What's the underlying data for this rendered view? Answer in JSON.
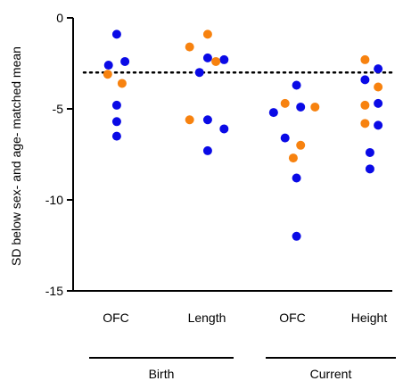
{
  "chart_data": {
    "type": "scatter",
    "ylabel": "SD below sex- and age- matched mean",
    "ylim": [
      -15,
      0
    ],
    "yticks": [
      0,
      -5,
      -10,
      -15
    ],
    "ytick_labels": [
      "0",
      "-5",
      "-10",
      "-15"
    ],
    "reference_line": {
      "y": -3,
      "style": "dotted"
    },
    "categories": [
      "OFC",
      "Length",
      "OFC",
      "Height"
    ],
    "groups": [
      {
        "label": "Birth",
        "categories": [
          0,
          1
        ]
      },
      {
        "label": "Current",
        "categories": [
          2,
          3
        ]
      }
    ],
    "series": [
      {
        "color": "#0a0ae6",
        "points": [
          {
            "category": 0,
            "offset": -0.18,
            "y": -2.6
          },
          {
            "category": 0,
            "offset": 0.02,
            "y": -0.9
          },
          {
            "category": 0,
            "offset": 0.22,
            "y": -2.4
          },
          {
            "category": 0,
            "offset": 0.02,
            "y": -4.8
          },
          {
            "category": 0,
            "offset": 0.02,
            "y": -5.7
          },
          {
            "category": 0,
            "offset": 0.02,
            "y": -6.5
          },
          {
            "category": 1,
            "offset": -0.18,
            "y": -3.0
          },
          {
            "category": 1,
            "offset": 0.02,
            "y": -2.2
          },
          {
            "category": 1,
            "offset": 0.42,
            "y": -2.3
          },
          {
            "category": 1,
            "offset": 0.02,
            "y": -5.6
          },
          {
            "category": 1,
            "offset": 0.42,
            "y": -6.1
          },
          {
            "category": 1,
            "offset": 0.02,
            "y": -7.3
          },
          {
            "category": 2,
            "offset": -0.46,
            "y": -5.2
          },
          {
            "category": 2,
            "offset": 0.1,
            "y": -3.7
          },
          {
            "category": 2,
            "offset": -0.18,
            "y": -6.6
          },
          {
            "category": 2,
            "offset": 0.2,
            "y": -4.9
          },
          {
            "category": 2,
            "offset": 0.1,
            "y": -8.8
          },
          {
            "category": 2,
            "offset": 0.1,
            "y": -12.0
          },
          {
            "category": 3,
            "offset": -0.1,
            "y": -3.4
          },
          {
            "category": 3,
            "offset": 0.22,
            "y": -2.8
          },
          {
            "category": 3,
            "offset": 0.22,
            "y": -4.7
          },
          {
            "category": 3,
            "offset": 0.22,
            "y": -5.9
          },
          {
            "category": 3,
            "offset": 0.02,
            "y": -7.4
          },
          {
            "category": 3,
            "offset": 0.02,
            "y": -8.3
          }
        ]
      },
      {
        "color": "#f7820f",
        "points": [
          {
            "category": 0,
            "offset": -0.2,
            "y": -3.1
          },
          {
            "category": 0,
            "offset": 0.15,
            "y": -3.6
          },
          {
            "category": 1,
            "offset": -0.42,
            "y": -1.6
          },
          {
            "category": 1,
            "offset": 0.02,
            "y": -0.9
          },
          {
            "category": 1,
            "offset": 0.22,
            "y": -2.4
          },
          {
            "category": 1,
            "offset": -0.42,
            "y": -5.6
          },
          {
            "category": 2,
            "offset": -0.18,
            "y": -4.7
          },
          {
            "category": 2,
            "offset": 0.55,
            "y": -4.9
          },
          {
            "category": 2,
            "offset": 0.2,
            "y": -7.0
          },
          {
            "category": 2,
            "offset": 0.02,
            "y": -7.7
          },
          {
            "category": 3,
            "offset": -0.1,
            "y": -2.3
          },
          {
            "category": 3,
            "offset": 0.22,
            "y": -3.8
          },
          {
            "category": 3,
            "offset": -0.1,
            "y": -4.8
          },
          {
            "category": 3,
            "offset": -0.1,
            "y": -5.8
          }
        ]
      }
    ]
  }
}
